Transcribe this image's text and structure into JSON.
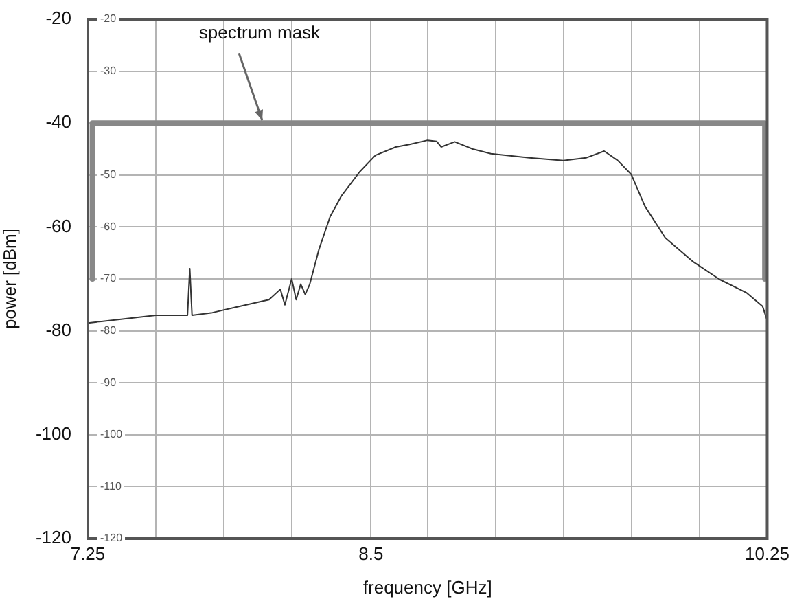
{
  "chart_data": {
    "type": "line",
    "xlabel": "frequency [GHz]",
    "ylabel": "power [dBm]",
    "xlim": [
      7.25,
      10.25
    ],
    "xticks": [
      7.25,
      {
        "value": 7.55,
        "label": null
      },
      {
        "value": 7.85,
        "label": null
      },
      {
        "value": 8.15,
        "label": null
      },
      8.5,
      {
        "value": 8.75,
        "label": null
      },
      {
        "value": 9.05,
        "label": null
      },
      {
        "value": 9.35,
        "label": null
      },
      {
        "value": 9.65,
        "label": null
      },
      {
        "value": 9.95,
        "label": null
      },
      10.25
    ],
    "ylim": [
      -120,
      -20
    ],
    "yticks": [
      -120,
      -100,
      -80,
      -60,
      -40,
      -20
    ],
    "y2lim": [
      -120,
      -20
    ],
    "y2ticks": [
      -120,
      -110,
      -100,
      -90,
      -80,
      -70,
      -60,
      -50,
      {
        "value": -40,
        "label": null
      },
      -30,
      -20
    ],
    "grid": true,
    "legend": false,
    "marker": "none",
    "line_style": "solid",
    "series": [
      {
        "color": "#333333",
        "x": [
          7.25,
          7.35,
          7.45,
          7.55,
          7.65,
          7.69,
          7.7,
          7.71,
          7.8,
          7.9,
          7.95,
          8.05,
          8.1,
          8.12,
          8.15,
          8.17,
          8.19,
          8.21,
          8.23,
          8.27,
          8.32,
          8.37,
          8.45,
          8.52,
          8.61,
          8.67,
          8.75,
          8.79,
          8.81,
          8.87,
          8.95,
          9.03,
          9.2,
          9.35,
          9.45,
          9.53,
          9.59,
          9.65,
          9.71,
          9.8,
          9.92,
          10.04,
          10.16,
          10.23,
          10.25
        ],
        "values": [
          -78.5,
          -78,
          -77.5,
          -77,
          -77,
          -77,
          -68,
          -77,
          -76.5,
          -75.5,
          -75,
          -74,
          -72,
          -75,
          -70,
          -74,
          -71,
          -73,
          -71,
          -64.4,
          -58,
          -54,
          -49.4,
          -46.2,
          -44.6,
          -44.1,
          -43.3,
          -43.5,
          -44.6,
          -43.6,
          -45,
          -45.9,
          -46.7,
          -47.2,
          -46.7,
          -45.4,
          -47.2,
          -49.9,
          -56,
          -62.1,
          -66.6,
          -70.1,
          -72.7,
          -75.3,
          -78
        ]
      },
      {
        "color": "#888888",
        "x": [
          7.27,
          7.27,
          10.24,
          10.24
        ],
        "values": [
          -70,
          -40,
          -40,
          -70
        ]
      }
    ],
    "annotations": [
      {
        "text": "spectrum mask",
        "x": 8.02,
        "y": -40
      }
    ]
  }
}
